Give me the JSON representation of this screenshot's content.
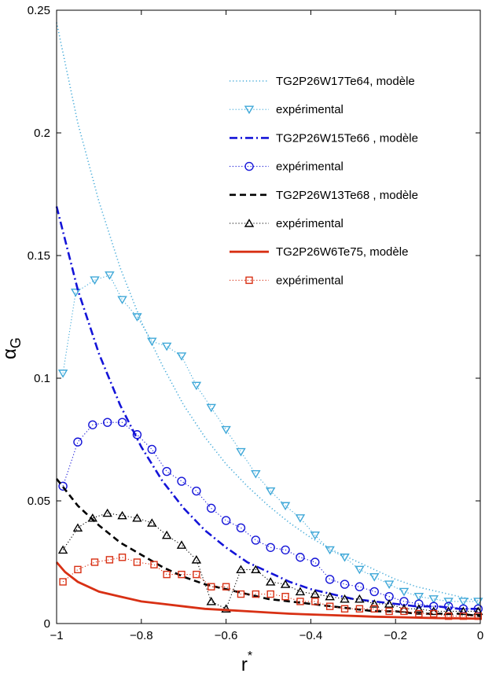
{
  "chart_data": {
    "type": "line",
    "xlabel": "r",
    "xlabel_sup": "*",
    "ylabel": "α",
    "ylabel_sub": "G",
    "xlim": [
      -1,
      0
    ],
    "ylim": [
      0,
      0.25
    ],
    "xticks": [
      -1,
      -0.8,
      -0.6,
      -0.4,
      -0.2,
      0
    ],
    "xtick_labels": [
      "−1",
      "−0.8",
      "−0.6",
      "−0.4",
      "−0.2",
      "0"
    ],
    "yticks": [
      0,
      0.05,
      0.1,
      0.15,
      0.2,
      0.25
    ],
    "ytick_labels": [
      "0",
      "0.05",
      "0.1",
      "0.15",
      "0.2",
      "0.25"
    ],
    "grid": false,
    "legend_position": "top-right",
    "series": [
      {
        "name": "TG2P26W17Te64, modèle",
        "kind": "model",
        "color": "#3fa8d8",
        "linestyle": "dotted",
        "x": [
          -1,
          -0.95,
          -0.9,
          -0.85,
          -0.8,
          -0.75,
          -0.7,
          -0.65,
          -0.6,
          -0.55,
          -0.5,
          -0.45,
          -0.4,
          -0.35,
          -0.3,
          -0.25,
          -0.2,
          -0.15,
          -0.1,
          -0.05,
          0
        ],
        "y": [
          0.245,
          0.204,
          0.172,
          0.145,
          0.123,
          0.105,
          0.089,
          0.076,
          0.065,
          0.056,
          0.048,
          0.041,
          0.035,
          0.03,
          0.026,
          0.022,
          0.018,
          0.015,
          0.013,
          0.011,
          0.009
        ]
      },
      {
        "name": "expérimental",
        "kind": "experimental",
        "color": "#3fa8d8",
        "marker": "triangle-down",
        "x": [
          -0.985,
          -0.955,
          -0.91,
          -0.875,
          -0.845,
          -0.81,
          -0.775,
          -0.74,
          -0.705,
          -0.67,
          -0.635,
          -0.6,
          -0.565,
          -0.53,
          -0.495,
          -0.46,
          -0.425,
          -0.39,
          -0.355,
          -0.32,
          -0.285,
          -0.25,
          -0.215,
          -0.18,
          -0.145,
          -0.11,
          -0.075,
          -0.04,
          -0.005
        ],
        "y": [
          0.102,
          0.135,
          0.14,
          0.142,
          0.132,
          0.125,
          0.115,
          0.113,
          0.109,
          0.097,
          0.088,
          0.079,
          0.07,
          0.061,
          0.054,
          0.048,
          0.043,
          0.036,
          0.03,
          0.027,
          0.022,
          0.019,
          0.016,
          0.013,
          0.011,
          0.01,
          0.009,
          0.009,
          0.009
        ]
      },
      {
        "name": "TG2P26W15Te66 , modèle",
        "kind": "model",
        "color": "#1414d8",
        "linestyle": "dashdot",
        "x": [
          -1,
          -0.95,
          -0.9,
          -0.85,
          -0.8,
          -0.75,
          -0.7,
          -0.65,
          -0.6,
          -0.55,
          -0.5,
          -0.45,
          -0.4,
          -0.35,
          -0.3,
          -0.25,
          -0.2,
          -0.15,
          -0.1,
          -0.05,
          0
        ],
        "y": [
          0.17,
          0.136,
          0.11,
          0.089,
          0.072,
          0.058,
          0.047,
          0.038,
          0.031,
          0.025,
          0.021,
          0.017,
          0.014,
          0.012,
          0.01,
          0.009,
          0.008,
          0.007,
          0.007,
          0.006,
          0.006
        ]
      },
      {
        "name": "expérimental",
        "kind": "experimental",
        "color": "#1414d8",
        "marker": "circle",
        "x": [
          -0.985,
          -0.95,
          -0.915,
          -0.88,
          -0.845,
          -0.81,
          -0.775,
          -0.74,
          -0.705,
          -0.67,
          -0.635,
          -0.6,
          -0.565,
          -0.53,
          -0.495,
          -0.46,
          -0.425,
          -0.39,
          -0.355,
          -0.32,
          -0.285,
          -0.25,
          -0.215,
          -0.18,
          -0.145,
          -0.11,
          -0.075,
          -0.04,
          -0.005
        ],
        "y": [
          0.056,
          0.074,
          0.081,
          0.082,
          0.082,
          0.077,
          0.071,
          0.062,
          0.058,
          0.054,
          0.047,
          0.042,
          0.039,
          0.034,
          0.031,
          0.03,
          0.027,
          0.025,
          0.018,
          0.016,
          0.015,
          0.013,
          0.011,
          0.009,
          0.008,
          0.007,
          0.007,
          0.006,
          0.006
        ]
      },
      {
        "name": "TG2P26W13Te68 , modèle",
        "kind": "model",
        "color": "#000000",
        "linestyle": "dashed",
        "x": [
          -1,
          -0.95,
          -0.9,
          -0.85,
          -0.8,
          -0.75,
          -0.7,
          -0.65,
          -0.6,
          -0.55,
          -0.5,
          -0.45,
          -0.4,
          -0.35,
          -0.3,
          -0.25,
          -0.2,
          -0.15,
          -0.1,
          -0.05,
          0
        ],
        "y": [
          0.059,
          0.048,
          0.04,
          0.033,
          0.028,
          0.023,
          0.019,
          0.016,
          0.014,
          0.012,
          0.01,
          0.009,
          0.008,
          0.007,
          0.006,
          0.005,
          0.005,
          0.004,
          0.004,
          0.004,
          0.003
        ]
      },
      {
        "name": "expérimental",
        "kind": "experimental",
        "color": "#000000",
        "marker": "triangle-up",
        "x": [
          -0.985,
          -0.95,
          -0.915,
          -0.88,
          -0.845,
          -0.81,
          -0.775,
          -0.74,
          -0.705,
          -0.67,
          -0.635,
          -0.6,
          -0.565,
          -0.53,
          -0.495,
          -0.46,
          -0.425,
          -0.39,
          -0.355,
          -0.32,
          -0.285,
          -0.25,
          -0.215,
          -0.18,
          -0.145,
          -0.11,
          -0.075,
          -0.04,
          -0.005
        ],
        "y": [
          0.03,
          0.039,
          0.043,
          0.045,
          0.044,
          0.043,
          0.041,
          0.036,
          0.032,
          0.026,
          0.009,
          0.006,
          0.022,
          0.022,
          0.017,
          0.016,
          0.013,
          0.012,
          0.011,
          0.01,
          0.01,
          0.008,
          0.008,
          0.006,
          0.006,
          0.005,
          0.005,
          0.005,
          0.005
        ]
      },
      {
        "name": "TG2P26W6Te75,  modèle",
        "kind": "model",
        "color": "#d83014",
        "linestyle": "solid",
        "x": [
          -1,
          -0.98,
          -0.95,
          -0.9,
          -0.85,
          -0.8,
          -0.75,
          -0.7,
          -0.65,
          -0.6,
          -0.55,
          -0.5,
          -0.45,
          -0.4,
          -0.35,
          -0.3,
          -0.25,
          -0.2,
          -0.15,
          -0.1,
          -0.05,
          0
        ],
        "y": [
          0.025,
          0.021,
          0.017,
          0.013,
          0.011,
          0.009,
          0.008,
          0.007,
          0.006,
          0.0055,
          0.005,
          0.0045,
          0.004,
          0.0037,
          0.0034,
          0.0031,
          0.0028,
          0.0026,
          0.0024,
          0.0022,
          0.0021,
          0.002
        ]
      },
      {
        "name": "expérimental",
        "kind": "experimental",
        "color": "#d83014",
        "marker": "square",
        "x": [
          -0.985,
          -0.95,
          -0.91,
          -0.875,
          -0.845,
          -0.81,
          -0.77,
          -0.74,
          -0.705,
          -0.67,
          -0.635,
          -0.6,
          -0.565,
          -0.53,
          -0.495,
          -0.46,
          -0.425,
          -0.39,
          -0.355,
          -0.32,
          -0.285,
          -0.25,
          -0.215,
          -0.18,
          -0.145,
          -0.11,
          -0.075,
          -0.04,
          -0.005
        ],
        "y": [
          0.017,
          0.022,
          0.025,
          0.026,
          0.027,
          0.025,
          0.024,
          0.02,
          0.02,
          0.02,
          0.015,
          0.015,
          0.012,
          0.012,
          0.012,
          0.011,
          0.009,
          0.009,
          0.007,
          0.006,
          0.006,
          0.006,
          0.005,
          0.005,
          0.004,
          0.004,
          0.003,
          0.003,
          0.003
        ]
      }
    ]
  }
}
